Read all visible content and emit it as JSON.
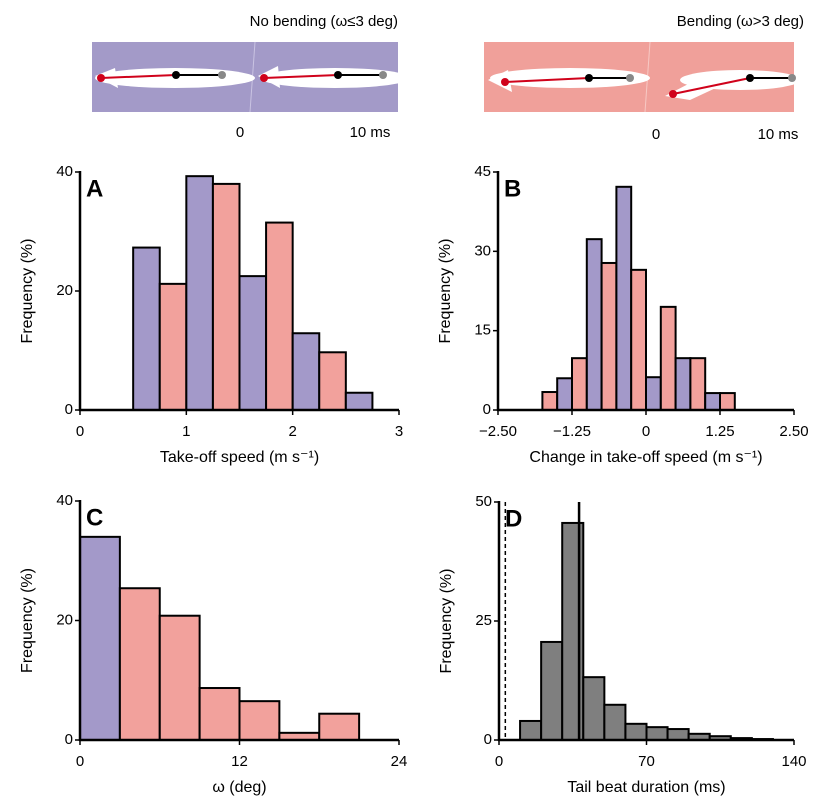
{
  "photos": [
    {
      "caption": "No bending (ω≤3 deg)",
      "time_labels": [
        "0",
        "10 ms"
      ]
    },
    {
      "caption": "Bending (ω>3 deg)",
      "time_labels": [
        "0",
        "10 ms"
      ]
    }
  ],
  "chart_data": [
    {
      "type": "histogram",
      "panel_label": "A",
      "xlabel": "Take-off speed (m s⁻¹)",
      "ylabel": "Frequency (%)",
      "bins": [
        0.5,
        0.75,
        1.0,
        1.25,
        1.5,
        1.75,
        2.0,
        2.25,
        2.5,
        2.75
      ],
      "counts": [
        27.3,
        21.2,
        39.3,
        38,
        22.5,
        31.5,
        12.9,
        9.7,
        2.9
      ],
      "colors": [
        "#a399c9",
        "#f2a19c",
        "#a399c9",
        "#f2a19c",
        "#a399c9",
        "#f2a19c",
        "#a399c9",
        "#f2a19c",
        "#a399c9"
      ],
      "xlim": [
        0,
        3
      ],
      "xticks": [
        0,
        1,
        2,
        3
      ],
      "ylim": [
        0,
        40
      ],
      "yticks": [
        0,
        20,
        40
      ]
    },
    {
      "type": "histogram",
      "panel_label": "B",
      "xlabel": "Change in take-off speed (m s⁻¹)",
      "ylabel": "Frequency (%)",
      "bins": [
        -1.75,
        -1.5,
        -1.25,
        -1.0,
        -0.75,
        -0.5,
        -0.25,
        0,
        0.25,
        0.5,
        0.75,
        1.0,
        1.25,
        1.5
      ],
      "counts": [
        3.4,
        6.0,
        9.8,
        32.3,
        27.8,
        42.2,
        26.5,
        6.2,
        19.5,
        9.8,
        9.8,
        3.2,
        3.2
      ],
      "colors": [
        "#f2a19c",
        "#a399c9",
        "#f2a19c",
        "#a399c9",
        "#f2a19c",
        "#a399c9",
        "#f2a19c",
        "#a399c9",
        "#f2a19c",
        "#a399c9",
        "#f2a19c",
        "#a399c9",
        "#f2a19c"
      ],
      "xlim": [
        -2.5,
        2.5
      ],
      "xticks": [
        {
          "value": -2.5,
          "label": "−2.50"
        },
        {
          "value": -1.25,
          "label": "−1.25"
        },
        0,
        1.25,
        {
          "value": 2.5,
          "label": "2.50"
        }
      ],
      "ylim": [
        0,
        45
      ],
      "yticks": [
        0,
        15,
        30,
        45
      ]
    },
    {
      "type": "histogram",
      "panel_label": "C",
      "xlabel": "ω (deg)",
      "ylabel": "Frequency (%)",
      "bins": [
        0,
        3,
        6,
        9,
        12,
        15,
        18,
        21
      ],
      "counts": [
        34,
        25.4,
        20.8,
        8.7,
        6.5,
        1.2,
        4.4
      ],
      "colors": [
        "#a399c9",
        "#f2a19c",
        "#f2a19c",
        "#f2a19c",
        "#f2a19c",
        "#f2a19c",
        "#f2a19c"
      ],
      "xlim": [
        0,
        24
      ],
      "xticks": [
        0,
        12,
        24
      ],
      "ylim": [
        0,
        40
      ],
      "yticks": [
        0,
        20,
        40
      ]
    },
    {
      "type": "histogram",
      "panel_label": "D",
      "xlabel": "Tail beat duration (ms)",
      "ylabel": "Frequency (%)",
      "bins": [
        10,
        20,
        30,
        40,
        50,
        60,
        70,
        80,
        90,
        100,
        110,
        120,
        130
      ],
      "counts": [
        4,
        20.6,
        45.6,
        13.2,
        7.4,
        3.4,
        2.7,
        2.3,
        1.3,
        0.8,
        0.4,
        0.2
      ],
      "colors": [
        "#7f7f7f",
        "#7f7f7f",
        "#7f7f7f",
        "#7f7f7f",
        "#7f7f7f",
        "#7f7f7f",
        "#7f7f7f",
        "#7f7f7f",
        "#7f7f7f",
        "#7f7f7f",
        "#7f7f7f",
        "#7f7f7f"
      ],
      "vlines": [
        {
          "value": 3,
          "style": "dashed"
        },
        {
          "value": 38,
          "style": "solid"
        }
      ],
      "xlim": [
        0,
        140
      ],
      "xticks": [
        0,
        70,
        140
      ],
      "ylim": [
        0,
        50
      ],
      "yticks": [
        0,
        25,
        50
      ]
    }
  ]
}
